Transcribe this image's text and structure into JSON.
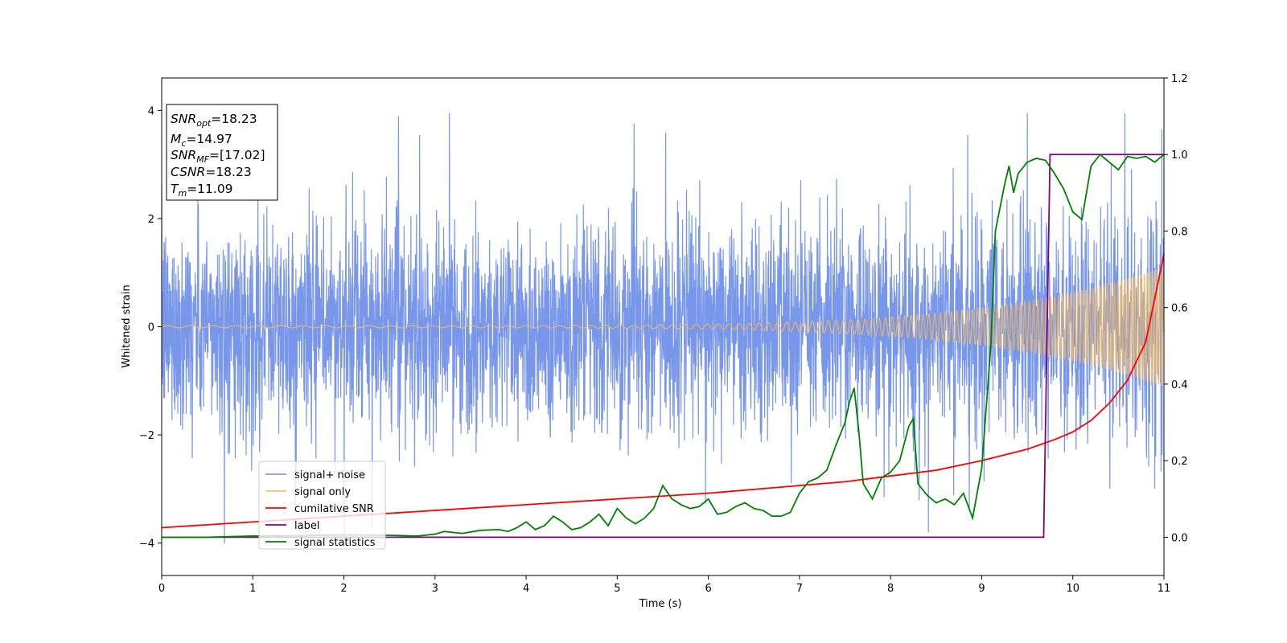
{
  "chart_data": {
    "type": "line",
    "xlabel": "Time (s)",
    "ylabel": "Whitened strain",
    "xlim": [
      0,
      11
    ],
    "ylim_left": [
      -4.6,
      4.6
    ],
    "ylim_right": [
      -0.1,
      1.2
    ],
    "x_ticks": [
      "0",
      "1",
      "2",
      "3",
      "4",
      "5",
      "6",
      "7",
      "8",
      "9",
      "10",
      "11"
    ],
    "y_ticks_left": [
      "4",
      "2",
      "0",
      "−2",
      "−4"
    ],
    "y_ticks_right": [
      "1.2",
      "1.0",
      "0.8",
      "0.6",
      "0.4",
      "0.2",
      "0.0"
    ],
    "legend_location": "lower-left",
    "annotation": [
      {
        "var": "SNR",
        "sub": "opt",
        "value": "=18.23"
      },
      {
        "var": "M",
        "sub": "c",
        "value": "=14.97"
      },
      {
        "var": "SNR",
        "sub": "MF",
        "value": "=[17.02]"
      },
      {
        "var": "CSNR",
        "sub": "",
        "value": "=18.23"
      },
      {
        "var": "T",
        "sub": "m",
        "value": "=11.09"
      }
    ],
    "series": [
      {
        "name": "signal+ noise",
        "color": "#6d8de8",
        "axis": "left",
        "description_values": "noise std ~1.0 with spikes to ±4, plus signal"
      },
      {
        "name": "signal only",
        "color": "#f5b85a",
        "axis": "left",
        "chirp": {
          "start_amplitude": 0.02,
          "end_amplitude": 1.1,
          "start_freq_hz": 4,
          "end_freq_hz": 30
        }
      },
      {
        "name": "cumilative SNR",
        "color": "#ff0000",
        "axis": "right",
        "x": [
          0,
          1,
          2,
          3,
          4,
          5,
          6,
          7,
          7.5,
          8,
          8.5,
          9,
          9.5,
          9.8,
          10,
          10.2,
          10.4,
          10.6,
          10.8,
          11
        ],
        "values": [
          0.025,
          0.04,
          0.055,
          0.07,
          0.085,
          0.1,
          0.115,
          0.135,
          0.145,
          0.16,
          0.175,
          0.2,
          0.23,
          0.255,
          0.275,
          0.305,
          0.35,
          0.41,
          0.51,
          0.74
        ]
      },
      {
        "name": "label",
        "color": "#800080",
        "axis": "right",
        "x": [
          0,
          9.68,
          9.75,
          11
        ],
        "values": [
          0.0,
          0.0,
          1.0,
          1.0
        ]
      },
      {
        "name": "signal statistics",
        "color": "#008000",
        "axis": "right",
        "x": [
          0,
          0.5,
          1,
          1.5,
          2,
          2.5,
          2.8,
          3,
          3.1,
          3.3,
          3.5,
          3.7,
          3.8,
          3.9,
          4,
          4.1,
          4.2,
          4.3,
          4.4,
          4.5,
          4.6,
          4.7,
          4.8,
          4.9,
          5,
          5.1,
          5.2,
          5.3,
          5.4,
          5.5,
          5.6,
          5.7,
          5.8,
          5.9,
          6,
          6.1,
          6.2,
          6.3,
          6.4,
          6.5,
          6.6,
          6.7,
          6.8,
          6.9,
          7,
          7.1,
          7.2,
          7.3,
          7.4,
          7.5,
          7.55,
          7.6,
          7.65,
          7.7,
          7.8,
          7.9,
          8,
          8.1,
          8.2,
          8.25,
          8.3,
          8.4,
          8.5,
          8.6,
          8.7,
          8.8,
          8.9,
          9,
          9.1,
          9.15,
          9.2,
          9.25,
          9.3,
          9.35,
          9.4,
          9.5,
          9.6,
          9.7,
          9.8,
          9.9,
          10,
          10.1,
          10.2,
          10.3,
          10.4,
          10.5,
          10.6,
          10.7,
          10.8,
          10.9,
          11
        ],
        "values": [
          0.0,
          0.0,
          0.003,
          0.004,
          0.006,
          0.005,
          0.003,
          0.008,
          0.015,
          0.01,
          0.018,
          0.02,
          0.015,
          0.025,
          0.04,
          0.02,
          0.03,
          0.055,
          0.04,
          0.02,
          0.025,
          0.04,
          0.06,
          0.03,
          0.075,
          0.05,
          0.035,
          0.05,
          0.075,
          0.135,
          0.1,
          0.085,
          0.075,
          0.08,
          0.1,
          0.06,
          0.065,
          0.08,
          0.09,
          0.075,
          0.07,
          0.055,
          0.055,
          0.065,
          0.115,
          0.145,
          0.155,
          0.175,
          0.24,
          0.3,
          0.355,
          0.39,
          0.28,
          0.14,
          0.1,
          0.155,
          0.17,
          0.2,
          0.29,
          0.31,
          0.14,
          0.11,
          0.09,
          0.1,
          0.085,
          0.115,
          0.05,
          0.18,
          0.5,
          0.8,
          0.86,
          0.92,
          0.97,
          0.9,
          0.95,
          0.98,
          0.99,
          0.985,
          0.95,
          0.91,
          0.85,
          0.83,
          0.97,
          1.0,
          0.98,
          0.96,
          0.995,
          0.99,
          0.995,
          0.98,
          1.0
        ]
      }
    ]
  }
}
